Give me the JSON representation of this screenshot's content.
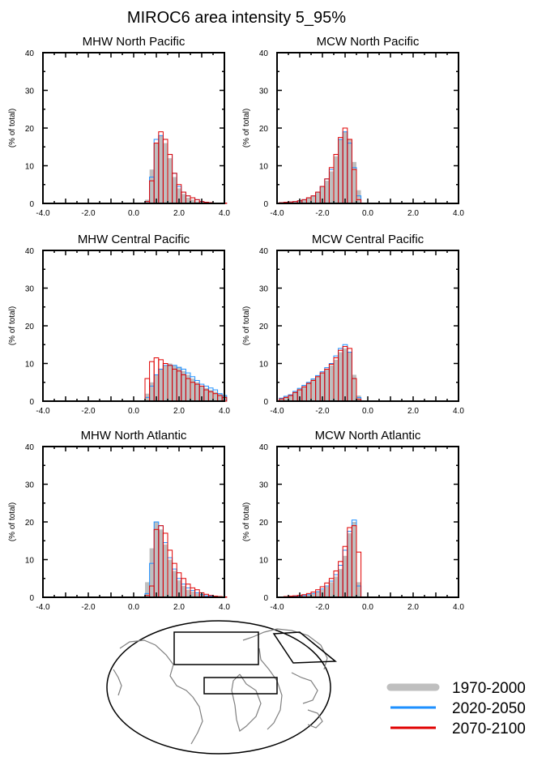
{
  "title": "MIROC6 area intensity 5_95%",
  "legend": {
    "placement": "bottom-right",
    "items": [
      {
        "label": "1970-2000",
        "color": "#bfbfbf",
        "style": "filled bars"
      },
      {
        "label": "2020-2050",
        "color": "#1e90ff",
        "style": "outline"
      },
      {
        "label": "2070-2100",
        "color": "#e00000",
        "style": "outline"
      }
    ]
  },
  "map": {
    "description_regions": 3,
    "projection": "global map with region boxes"
  },
  "chart_data": [
    {
      "type": "bar",
      "title": "MHW North Pacific",
      "ylabel": "(% of total)",
      "xlim": [
        -4,
        4
      ],
      "ylim": [
        0,
        40
      ],
      "xticks": [
        "-4.0",
        "-2.0",
        "0.0",
        "2.0",
        "4.0"
      ],
      "yticks": [
        "0",
        "10",
        "20",
        "30",
        "40"
      ],
      "bin_start": 0.5,
      "bin_width": 0.2,
      "series": [
        {
          "name": "1970-2000",
          "values": [
            1,
            9,
            16,
            18,
            16,
            12,
            7,
            4,
            2.5,
            1.5,
            1,
            0.5,
            0.3,
            0.2,
            0.1,
            0.1,
            0.1,
            0.1
          ]
        },
        {
          "name": "2020-2050",
          "values": [
            0.5,
            7,
            17,
            18,
            17,
            13,
            8,
            4.5,
            3,
            2,
            1.5,
            1,
            0.5,
            0.3,
            0.2,
            0.1,
            0.1,
            0.1
          ]
        },
        {
          "name": "2070-2100",
          "values": [
            0.5,
            6,
            16,
            19,
            17,
            13,
            8,
            5,
            3,
            2,
            1.5,
            1,
            0.5,
            0.3,
            0.2,
            0.1,
            0.1,
            0.1
          ]
        }
      ]
    },
    {
      "type": "bar",
      "title": "MCW North Pacific",
      "ylabel": "(% of total)",
      "xlim": [
        -4,
        4
      ],
      "ylim": [
        0,
        40
      ],
      "xticks": [
        "-4.0",
        "-2.0",
        "0.0",
        "2.0",
        "4.0"
      ],
      "yticks": [
        "0",
        "10",
        "20",
        "30",
        "40"
      ],
      "bin_start": -3.9,
      "bin_width": 0.2,
      "series": [
        {
          "name": "1970-2000",
          "values": [
            0.2,
            0.3,
            0.4,
            0.5,
            0.7,
            1,
            1.5,
            2,
            3,
            4.5,
            6,
            8.5,
            12.5,
            17,
            19,
            17,
            11,
            3.5
          ]
        },
        {
          "name": "2020-2050",
          "values": [
            0.2,
            0.3,
            0.4,
            0.5,
            0.7,
            1,
            1.5,
            2,
            3,
            4.5,
            6.5,
            9,
            13,
            17,
            19,
            16,
            9.5,
            2
          ]
        },
        {
          "name": "2070-2100",
          "values": [
            0.2,
            0.3,
            0.4,
            0.5,
            0.7,
            1,
            1.5,
            2,
            3,
            4.5,
            6.5,
            9.5,
            13,
            17.5,
            20,
            17,
            9,
            1
          ]
        }
      ]
    },
    {
      "type": "bar",
      "title": "MHW Central Pacific",
      "ylabel": "(% of total)",
      "xlim": [
        -4,
        4
      ],
      "ylim": [
        0,
        40
      ],
      "xticks": [
        "-4.0",
        "-2.0",
        "0.0",
        "2.0",
        "4.0"
      ],
      "yticks": [
        "0",
        "10",
        "20",
        "30",
        "40"
      ],
      "bin_start": 0.5,
      "bin_width": 0.2,
      "series": [
        {
          "name": "1970-2000",
          "values": [
            2,
            5,
            7,
            8.5,
            9.5,
            10,
            9.5,
            9,
            8,
            7,
            6,
            5,
            4,
            3.5,
            3,
            2.5,
            2,
            1.5
          ]
        },
        {
          "name": "2020-2050",
          "values": [
            1,
            4,
            7,
            8.5,
            9.5,
            9.5,
            9.5,
            9,
            8.5,
            7.5,
            6.5,
            5.5,
            4.5,
            4,
            3.5,
            3,
            2,
            1.5
          ]
        },
        {
          "name": "2070-2100",
          "values": [
            6,
            10.5,
            11.5,
            11,
            10,
            9.5,
            8.5,
            8,
            7,
            6,
            5,
            4.5,
            4,
            3,
            2.5,
            2,
            1.5,
            1
          ]
        }
      ]
    },
    {
      "type": "bar",
      "title": "MCW Central Pacific",
      "ylabel": "(% of total)",
      "xlim": [
        -4,
        4
      ],
      "ylim": [
        0,
        40
      ],
      "xticks": [
        "-4.0",
        "-2.0",
        "0.0",
        "2.0",
        "4.0"
      ],
      "yticks": [
        "0",
        "10",
        "20",
        "30",
        "40"
      ],
      "bin_start": -3.9,
      "bin_width": 0.2,
      "series": [
        {
          "name": "1970-2000",
          "values": [
            0.7,
            1.2,
            1.6,
            2.5,
            3.3,
            4,
            5,
            5.8,
            6.5,
            7.5,
            8.5,
            9.5,
            11,
            13,
            14,
            13,
            7,
            1.5
          ]
        },
        {
          "name": "2020-2050",
          "values": [
            0.8,
            1.3,
            1.7,
            2.6,
            3.4,
            4.2,
            5,
            5.9,
            6.8,
            7.8,
            8.9,
            10,
            12,
            14,
            15,
            13,
            6,
            1
          ]
        },
        {
          "name": "2070-2100",
          "values": [
            0.6,
            1,
            1.5,
            2.3,
            3,
            3.8,
            4.7,
            5.5,
            6.5,
            7.5,
            8.5,
            9.8,
            11.5,
            13.5,
            14.5,
            14,
            6,
            0.5
          ]
        }
      ]
    },
    {
      "type": "bar",
      "title": "MHW North Atlantic",
      "ylabel": "(% of total)",
      "xlim": [
        -4,
        4
      ],
      "ylim": [
        0,
        40
      ],
      "xticks": [
        "-4.0",
        "-2.0",
        "0.0",
        "2.0",
        "4.0"
      ],
      "yticks": [
        "0",
        "10",
        "20",
        "30",
        "40"
      ],
      "bin_start": 0.5,
      "bin_width": 0.2,
      "series": [
        {
          "name": "1970-2000",
          "values": [
            4,
            13,
            20,
            18,
            14,
            10,
            7,
            4.5,
            3,
            2,
            1.5,
            1,
            0.5,
            0.3,
            0.2,
            0.1,
            0.1,
            0.1
          ]
        },
        {
          "name": "2020-2050",
          "values": [
            1,
            9,
            20,
            19,
            14.5,
            10.5,
            7.5,
            5,
            3.5,
            2.5,
            1.8,
            1.2,
            0.7,
            0.4,
            0.3,
            0.2,
            0.1,
            0.1
          ]
        },
        {
          "name": "2070-2100",
          "values": [
            0.5,
            3,
            18,
            19,
            17,
            12.5,
            9,
            6.5,
            5,
            3.5,
            2.5,
            2,
            1.2,
            0.8,
            0.5,
            0.3,
            0.2,
            0.1
          ]
        }
      ]
    },
    {
      "type": "bar",
      "title": "MCW North Atlantic",
      "ylabel": "(% of total)",
      "xlim": [
        -4,
        4
      ],
      "ylim": [
        0,
        40
      ],
      "xticks": [
        "-4.0",
        "-2.0",
        "0.0",
        "2.0",
        "4.0"
      ],
      "yticks": [
        "0",
        "10",
        "20",
        "30",
        "40"
      ],
      "bin_start": -3.9,
      "bin_width": 0.2,
      "series": [
        {
          "name": "1970-2000",
          "values": [
            0.1,
            0.1,
            0.2,
            0.3,
            0.4,
            0.5,
            0.7,
            1,
            1.4,
            2,
            2.8,
            4,
            5.5,
            7.5,
            11,
            17,
            20,
            4
          ]
        },
        {
          "name": "2020-2050",
          "values": [
            0.1,
            0.1,
            0.2,
            0.3,
            0.4,
            0.5,
            0.7,
            1,
            1.5,
            2.2,
            3,
            4.3,
            6,
            8.5,
            12.5,
            17.5,
            20.5,
            3
          ]
        },
        {
          "name": "2070-2100",
          "values": [
            0.1,
            0.2,
            0.3,
            0.4,
            0.5,
            0.7,
            1,
            1.4,
            2,
            2.8,
            3.8,
            5,
            7,
            9.5,
            13.5,
            18.5,
            19,
            12
          ]
        }
      ]
    }
  ]
}
